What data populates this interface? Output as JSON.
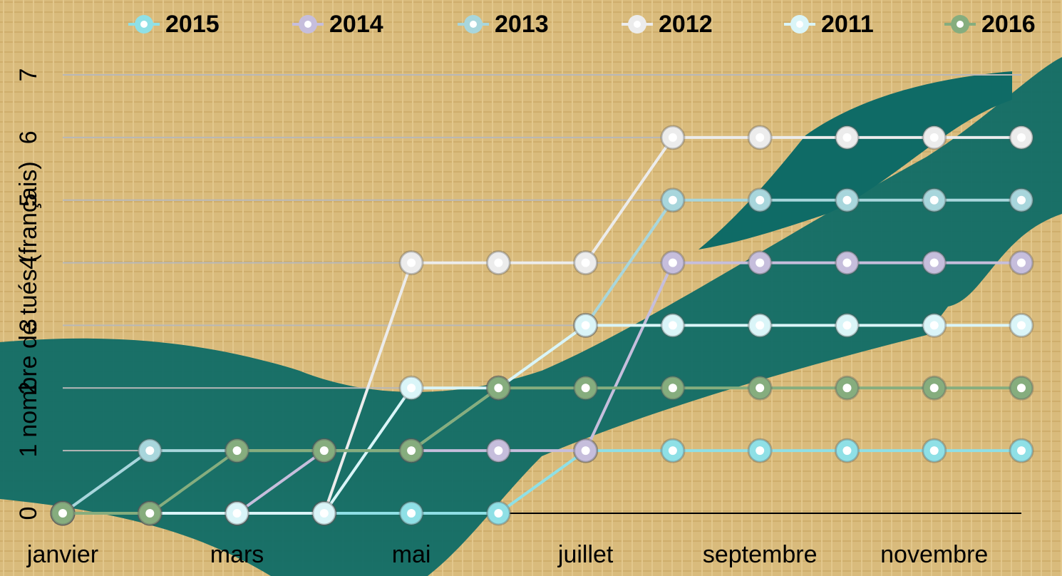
{
  "chart_data": {
    "type": "line",
    "y_label": "nombre de tués (français)",
    "categories": [
      "janvier",
      null,
      "mars",
      null,
      "mai",
      null,
      "juillet",
      null,
      "septembre",
      null,
      "novembre",
      null
    ],
    "series": [
      {
        "name": "2015",
        "color": "#8fe0e6",
        "values": [
          0,
          0,
          0,
          0,
          0,
          0,
          1,
          1,
          1,
          1,
          1,
          1
        ]
      },
      {
        "name": "2014",
        "color": "#c6bedc",
        "values": [
          0,
          0,
          0,
          1,
          1,
          1,
          1,
          4,
          4,
          4,
          4,
          4
        ]
      },
      {
        "name": "2013",
        "color": "#a8d6dc",
        "values": [
          0,
          1,
          1,
          1,
          1,
          2,
          3,
          5,
          5,
          5,
          5,
          5
        ]
      },
      {
        "name": "2012",
        "color": "#ececec",
        "values": [
          0,
          0,
          0,
          0,
          4,
          4,
          4,
          6,
          6,
          6,
          6,
          6
        ]
      },
      {
        "name": "2011",
        "color": "#daf5f8",
        "values": [
          0,
          0,
          0,
          0,
          2,
          2,
          3,
          3,
          3,
          3,
          3,
          3
        ]
      },
      {
        "name": "2016",
        "color": "#86ad7e",
        "values": [
          0,
          0,
          1,
          1,
          1,
          2,
          2,
          2,
          2,
          2,
          2,
          2
        ]
      }
    ],
    "ylim": [
      0,
      7
    ],
    "yticks": [
      0,
      1,
      2,
      3,
      4,
      5,
      6,
      7
    ],
    "grid": true,
    "legend": "top"
  }
}
